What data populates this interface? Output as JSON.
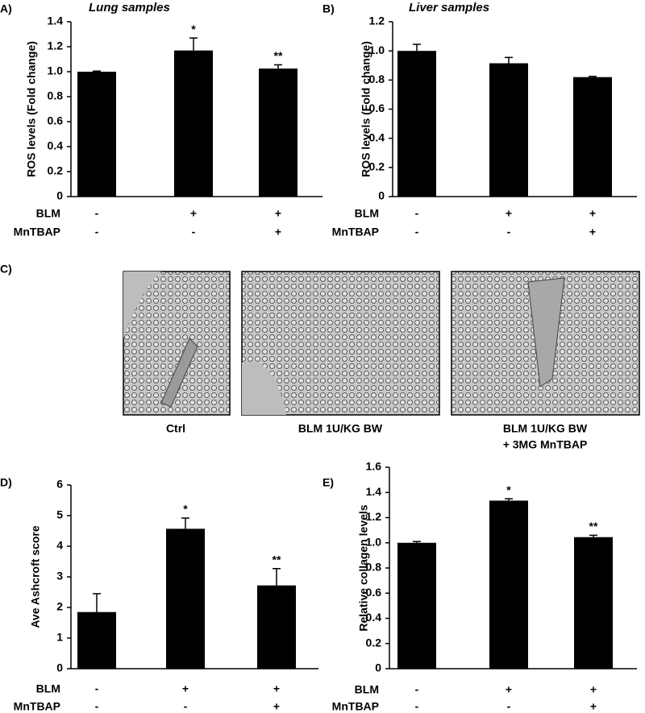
{
  "chart_data": [
    {
      "type": "bar",
      "panel": "A)",
      "title": "Lung samples",
      "y_label": "ROS levels (Fold change)",
      "color": "#000000",
      "values": [
        1.0,
        1.17,
        1.025
      ],
      "errors": [
        0.005,
        0.1,
        0.03
      ],
      "annotations": [
        null,
        "*",
        "**"
      ],
      "ylim": [
        0,
        1.4
      ],
      "yticks": [
        0,
        0.2,
        0.4,
        0.6,
        0.8,
        {
          "value": 1,
          "label": "1.0"
        },
        1.2,
        1.4
      ],
      "conditions": [
        {
          "name": "BLM",
          "values": [
            "-",
            "+",
            "+"
          ]
        },
        {
          "name": "MnTBAP",
          "values": [
            "-",
            "-",
            "+"
          ]
        }
      ]
    },
    {
      "type": "bar",
      "panel": "B)",
      "title": "Liver samples",
      "y_label": "ROS levels (Fold change)",
      "color": "#000000",
      "values": [
        1.0,
        0.915,
        0.82
      ],
      "errors": [
        0.045,
        0.04,
        0.005
      ],
      "annotations": [
        null,
        null,
        null
      ],
      "ylim": [
        0,
        1.2
      ],
      "yticks": [
        0,
        0.2,
        0.4,
        0.6,
        0.8,
        {
          "value": 1,
          "label": "1.0"
        },
        1.2
      ],
      "conditions": [
        {
          "name": "BLM",
          "values": [
            "-",
            "+",
            "+"
          ]
        },
        {
          "name": "MnTBAP",
          "values": [
            "-",
            "-",
            "+"
          ]
        }
      ]
    },
    {
      "type": "bar",
      "panel": "D)",
      "y_label": "Ave Ashcroft score",
      "color": "#000000",
      "values": [
        1.85,
        4.57,
        2.72
      ],
      "errors": [
        0.6,
        0.35,
        0.55
      ],
      "annotations": [
        null,
        "*",
        "**"
      ],
      "ylim": [
        0,
        6
      ],
      "yticks": [
        0,
        1,
        2,
        3,
        4,
        5,
        6
      ],
      "conditions": [
        {
          "name": "BLM",
          "values": [
            "-",
            "+",
            "+"
          ]
        },
        {
          "name": "MnTBAP",
          "values": [
            "-",
            "-",
            "+"
          ]
        }
      ]
    },
    {
      "type": "bar",
      "panel": "E)",
      "y_label": "Relative collagen levels",
      "color": "#000000",
      "values": [
        1.0,
        1.335,
        1.045
      ],
      "errors": [
        0.01,
        0.015,
        0.015
      ],
      "annotations": [
        null,
        "*",
        "**"
      ],
      "ylim": [
        0,
        1.6
      ],
      "yticks": [
        0,
        0.2,
        0.4,
        0.6,
        0.8,
        {
          "value": 1,
          "label": "1.0"
        },
        1.2,
        1.4,
        1.6
      ],
      "conditions": [
        {
          "name": "BLM",
          "values": [
            "-",
            "+",
            "+"
          ]
        },
        {
          "name": "MnTBAP",
          "values": [
            "-",
            "-",
            "+"
          ]
        }
      ]
    }
  ],
  "histology": {
    "panel": "C)",
    "captions": [
      "Ctrl",
      "BLM 1U/KG BW",
      "BLM 1U/KG BW",
      "+ 3MG MnTBAP"
    ]
  }
}
